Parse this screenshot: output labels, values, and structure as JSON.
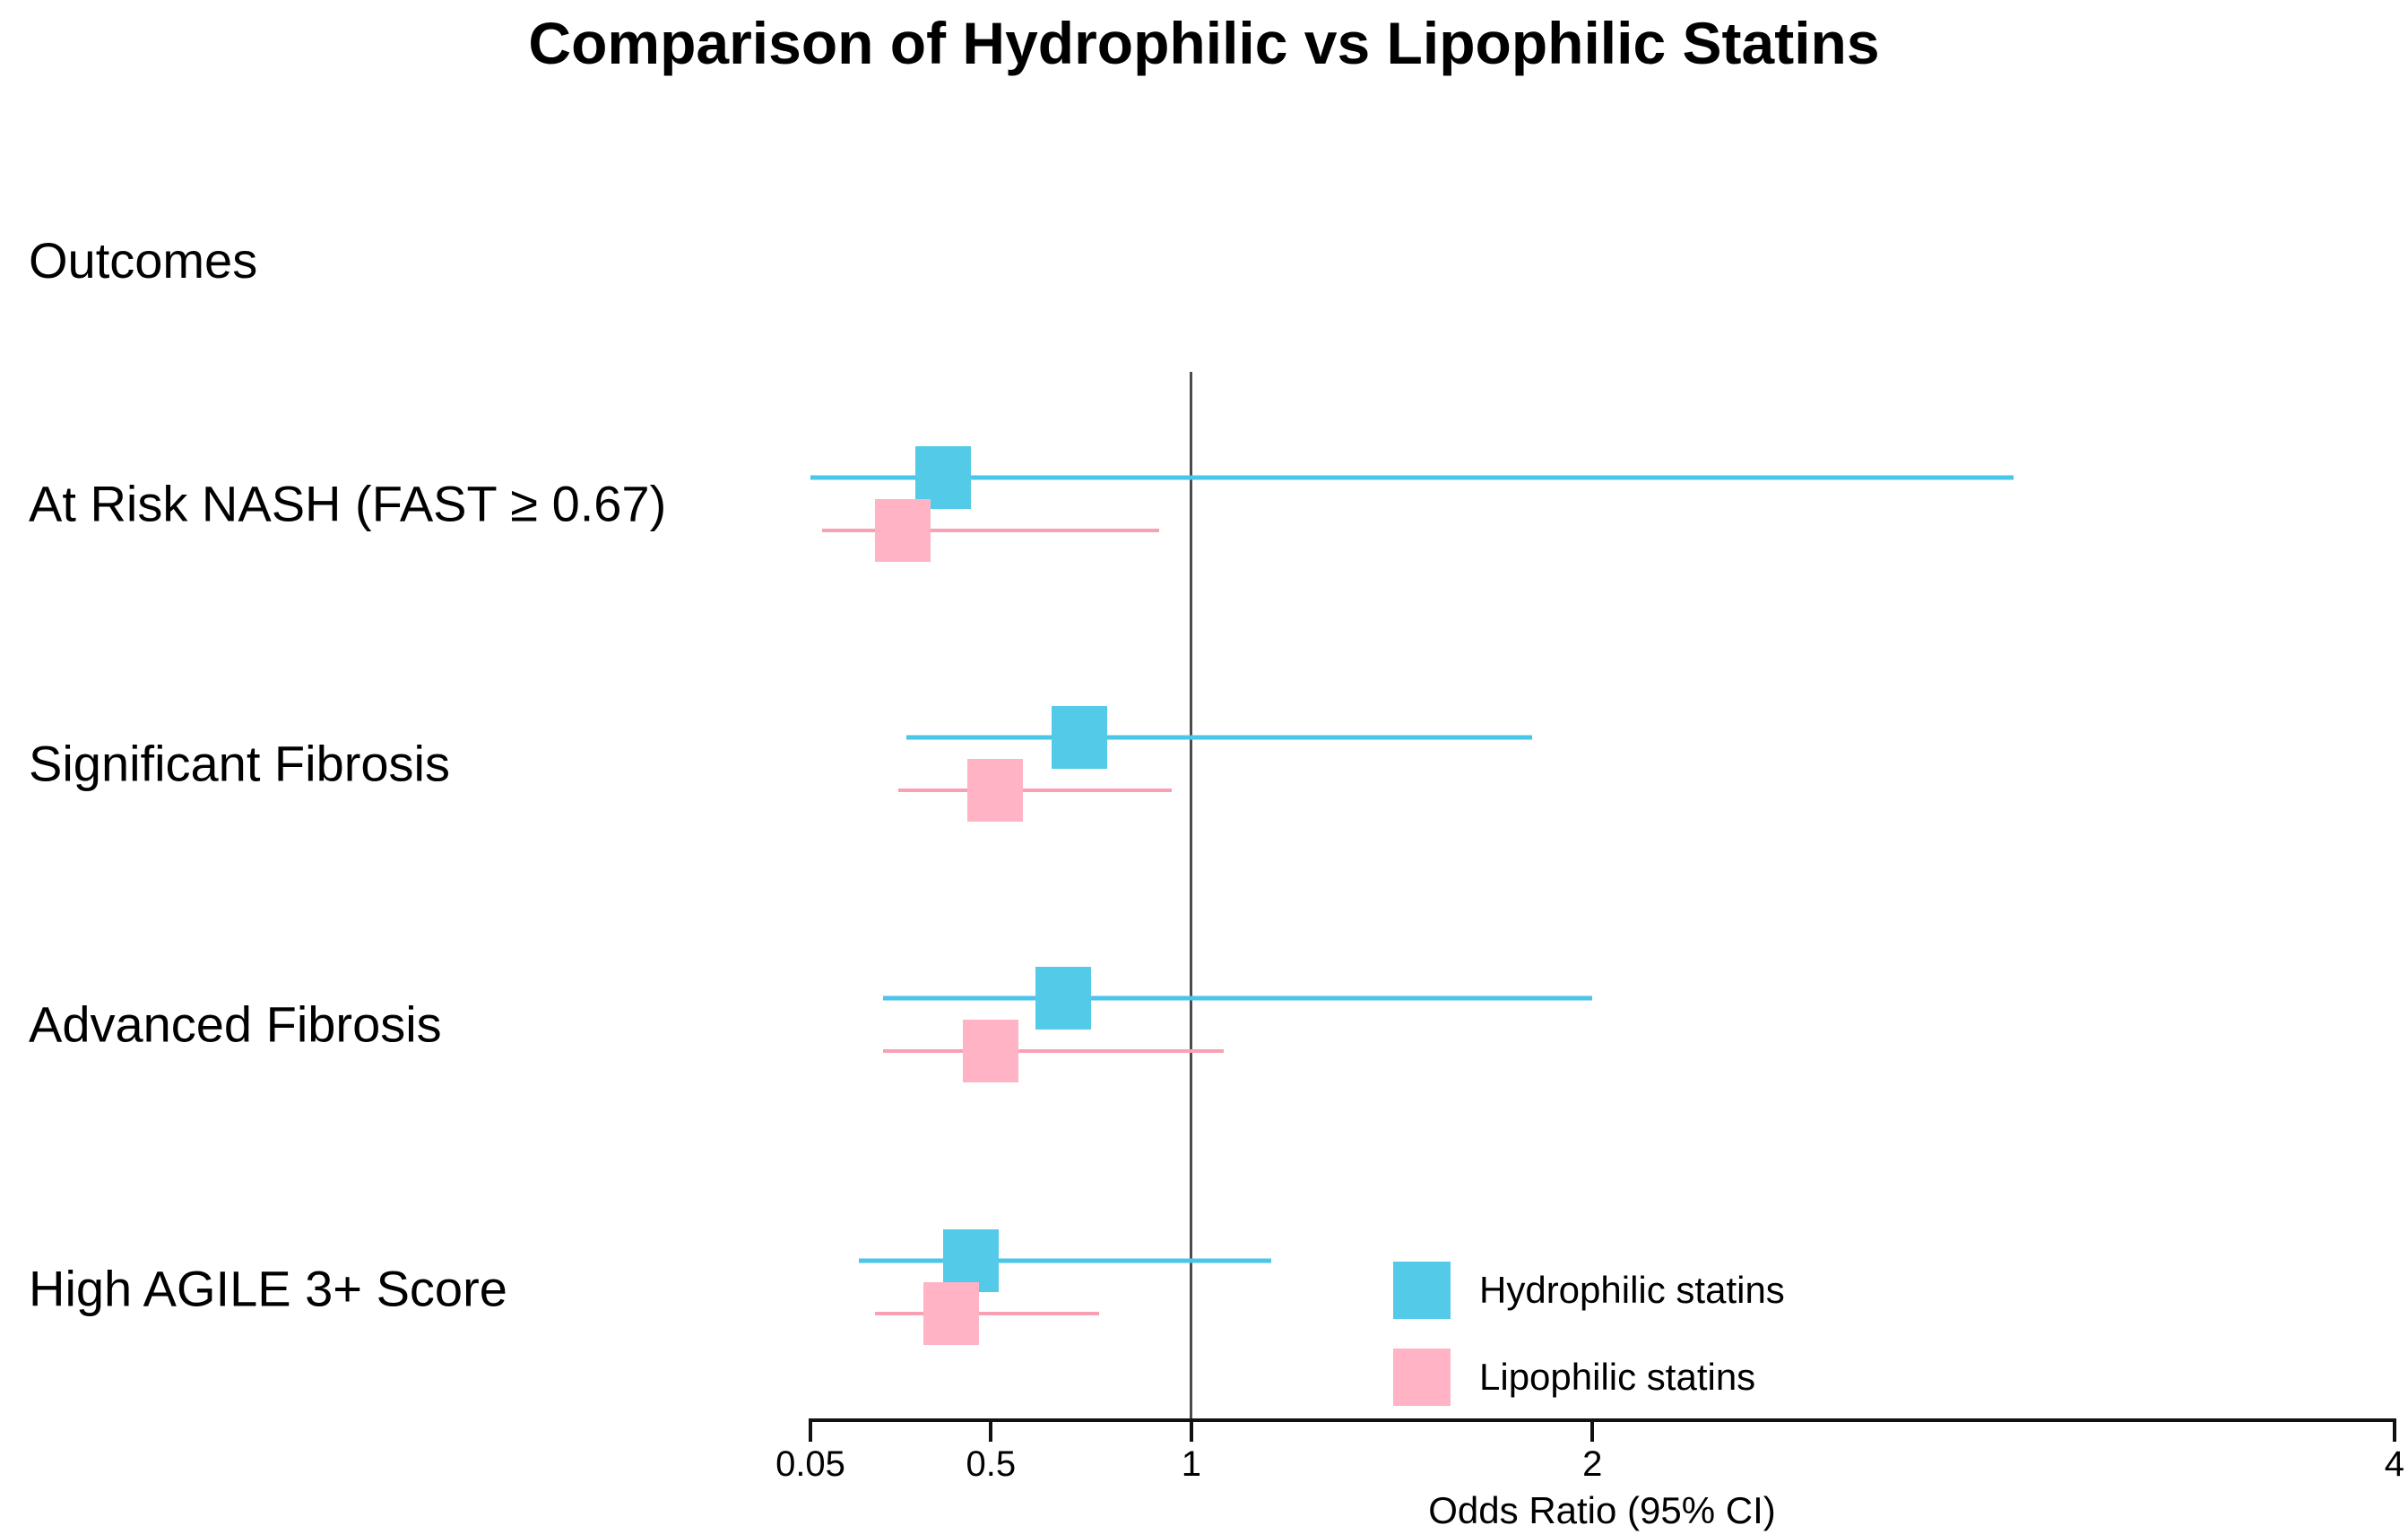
{
  "title": "Comparison of Hydrophilic vs Lipophilic Statins",
  "outcomes_header": "Outcomes",
  "axis": {
    "title": "Odds Ratio (95% CI)",
    "ticks": [
      0.05,
      0.5,
      1,
      2,
      4
    ],
    "tick_labels": [
      "0.05",
      "0.5",
      "1",
      "2",
      "4"
    ],
    "range": [
      0.05,
      4
    ],
    "reference_line": 1,
    "scale": "linear"
  },
  "legend": {
    "items": [
      {
        "label": "Hydrophilic statins",
        "color": "#53CBE8"
      },
      {
        "label": "Lipophilic statins",
        "color": "#FFB3C5"
      }
    ],
    "position": "bottom-right-inside"
  },
  "colors": {
    "hydrophilic_marker": "#53CBE8",
    "hydrophilic_line": "#49C6E8",
    "lipophilic_marker": "#FFB3C5",
    "lipophilic_line": "#F9A1B2",
    "reference_line": "#4b4b4b",
    "axis": "#111111"
  },
  "chart_data": {
    "type": "forest",
    "title": "Comparison of Hydrophilic vs Lipophilic Statins",
    "xlabel": "Odds Ratio (95% CI)",
    "xlim": [
      0.05,
      4
    ],
    "grid": false,
    "categories": [
      "At Risk NASH (FAST ≥ 0.67)",
      "Significant Fibrosis",
      "Advanced Fibrosis",
      "High AGILE 3+ Score"
    ],
    "series": [
      {
        "name": "Hydrophilic statins",
        "values": [
          {
            "or": 0.38,
            "ci_low": 0.05,
            "ci_high": 3.05
          },
          {
            "or": 0.72,
            "ci_low": 0.29,
            "ci_high": 1.85
          },
          {
            "or": 0.68,
            "ci_low": 0.23,
            "ci_high": 2.0
          },
          {
            "or": 0.45,
            "ci_low": 0.17,
            "ci_high": 1.2
          }
        ]
      },
      {
        "name": "Lipophilic statins",
        "values": [
          {
            "or": 0.28,
            "ci_low": 0.08,
            "ci_high": 0.92
          },
          {
            "or": 0.51,
            "ci_low": 0.27,
            "ci_high": 0.95
          },
          {
            "or": 0.5,
            "ci_low": 0.23,
            "ci_high": 1.08
          },
          {
            "or": 0.4,
            "ci_low": 0.21,
            "ci_high": 0.77
          }
        ]
      }
    ]
  }
}
